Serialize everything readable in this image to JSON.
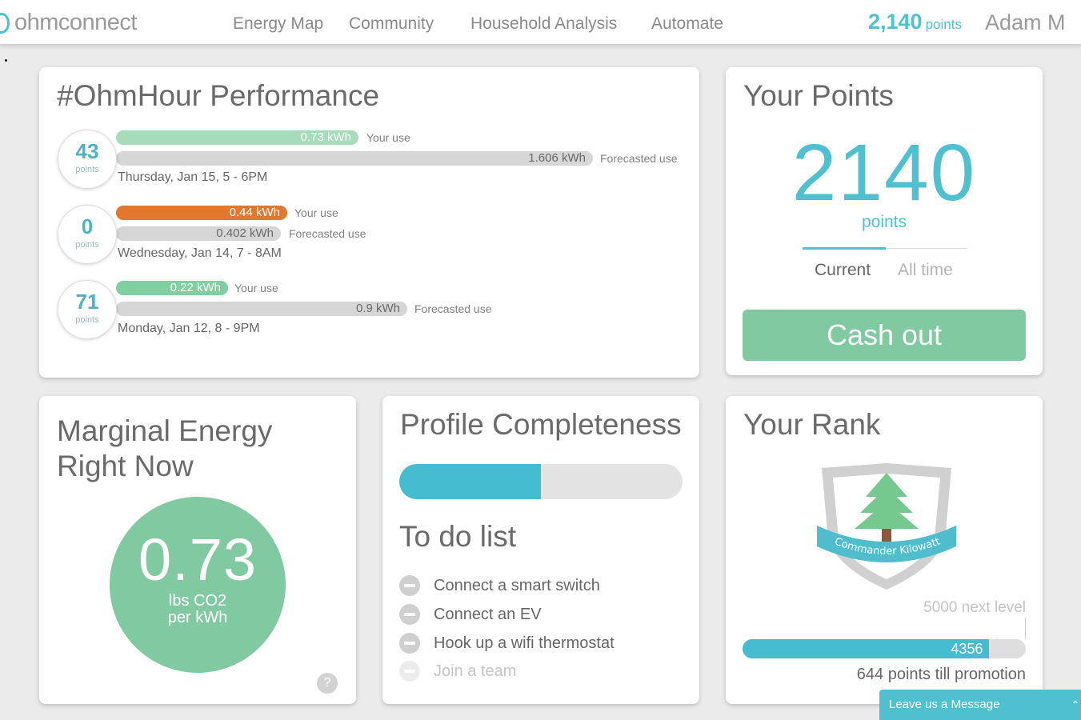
{
  "header": {
    "logo_text": "ohmconnect",
    "nav": [
      "Energy Map",
      "Community",
      "Household Analysis",
      "Automate"
    ],
    "points_value": "2,140",
    "points_label": "points",
    "user_name": "Adam M"
  },
  "ohmhour": {
    "title": "#OhmHour Performance",
    "events": [
      {
        "points": "43",
        "points_label": "points",
        "use": "0.73 kWh",
        "use_label": "Your use",
        "forecast": "1.606 kWh",
        "forecast_label": "Forecasted use",
        "date": "Thursday, Jan 15, 5 - 6PM"
      },
      {
        "points": "0",
        "points_label": "points",
        "use": "0.44 kWh",
        "use_label": "Your use",
        "forecast": "0.402 kWh",
        "forecast_label": "Forecasted use",
        "date": "Wednesday, Jan 14, 7 - 8AM"
      },
      {
        "points": "71",
        "points_label": "points",
        "use": "0.22 kWh",
        "use_label": "Your use",
        "forecast": "0.9 kWh",
        "forecast_label": "Forecasted use",
        "date": "Monday, Jan 12, 8 - 9PM"
      }
    ]
  },
  "your_points": {
    "title": "Your Points",
    "value": "2140",
    "label": "points",
    "tabs": [
      "Current",
      "All time"
    ],
    "cash_out_label": "Cash out"
  },
  "marginal": {
    "title_line1": "Marginal Energy",
    "title_line2": "Right Now",
    "value": "0.73",
    "unit_line1": "lbs CO2",
    "unit_line2": "per kWh",
    "help": "?"
  },
  "profile": {
    "title": "Profile Completeness",
    "completeness": 0.5,
    "todo_title": "To do list",
    "todo": [
      "Connect a smart switch",
      "Connect an EV",
      "Hook up a wifi thermostat",
      "Join a team"
    ]
  },
  "rank": {
    "title": "Your Rank",
    "badge_name": "Commander Kilowatt",
    "next_level": "5000 next level",
    "current": "4356",
    "progress": 0.8712,
    "promotion": "644 points till promotion"
  },
  "colors": {
    "accent": "#4fc0cf",
    "green": "#80c9a1",
    "orange": "#e1782d"
  },
  "chat": {
    "label": "Leave us a Message"
  }
}
